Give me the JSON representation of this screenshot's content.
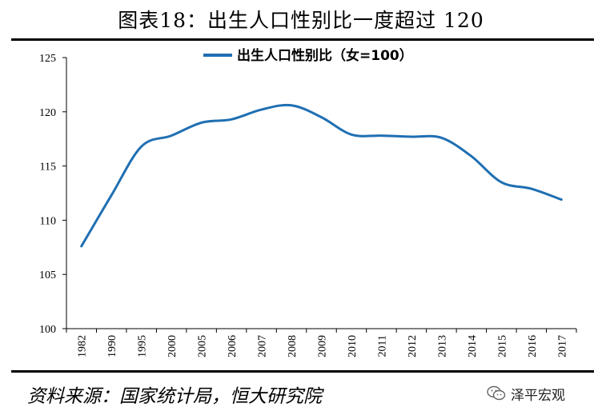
{
  "header": {
    "title": "图表18：出生人口性别比一度超过 120"
  },
  "footer": {
    "source": "资料来源：国家统计局，恒大研究院"
  },
  "watermark": {
    "label": "泽平宏观",
    "icon": "wechat-icon"
  },
  "colors": {
    "line": "#1f6fb2",
    "axis": "#000000"
  },
  "chart_data": {
    "type": "line",
    "title": "",
    "xlabel": "",
    "ylabel": "",
    "categories": [
      "1982",
      "1990",
      "1995",
      "2000",
      "2005",
      "2006",
      "2007",
      "2008",
      "2009",
      "2010",
      "2011",
      "2012",
      "2013",
      "2014",
      "2015",
      "2016",
      "2017"
    ],
    "series": [
      {
        "name": "出生人口性别比（女=100）",
        "values": [
          107.6,
          112.3,
          116.8,
          117.8,
          119.0,
          119.3,
          120.2,
          120.6,
          119.5,
          117.9,
          117.8,
          117.7,
          117.6,
          115.9,
          113.5,
          112.9,
          111.9
        ]
      }
    ],
    "ylim": [
      100,
      125
    ],
    "yticks": [
      100,
      105,
      110,
      115,
      120,
      125
    ],
    "grid": false,
    "legend_position": "top-center"
  }
}
